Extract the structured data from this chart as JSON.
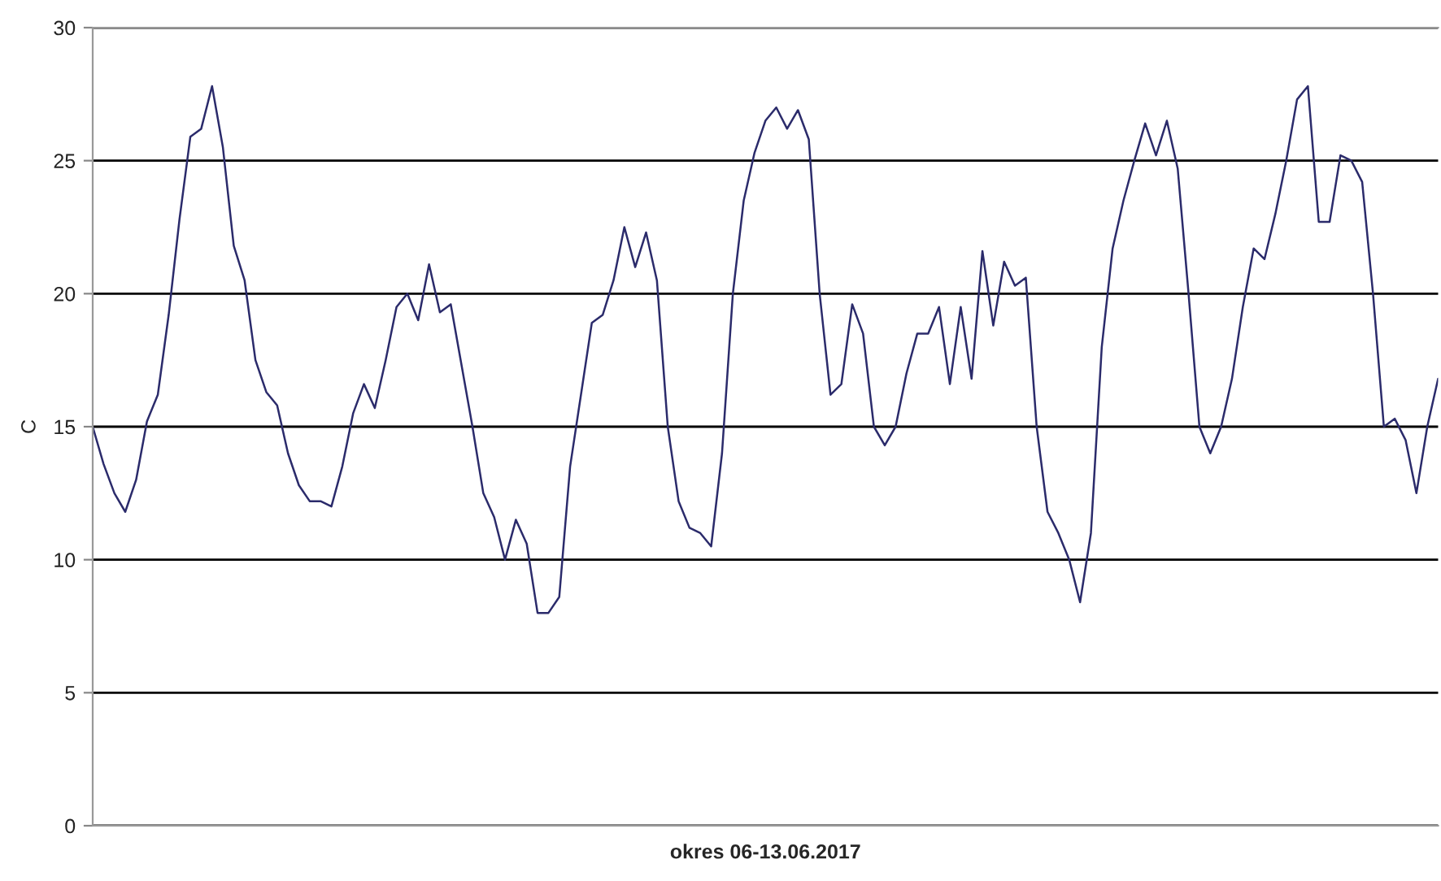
{
  "chart_data": {
    "type": "line",
    "xlabel": "okres 06-13.06.2017",
    "ylabel": "C",
    "categories": [
      null,
      null,
      null,
      null,
      null,
      null,
      null,
      null,
      null,
      null,
      null,
      null,
      null,
      null,
      null,
      null,
      null,
      null,
      null,
      null,
      null,
      null,
      null,
      null,
      null,
      null,
      null,
      null,
      null,
      null,
      null,
      null,
      null,
      null,
      null,
      null,
      null,
      null,
      null,
      null,
      null,
      null,
      null,
      null,
      null,
      null,
      null,
      null,
      null,
      null,
      null,
      null,
      null,
      null,
      null,
      null,
      null,
      null,
      null,
      null,
      null,
      null,
      null,
      null,
      null,
      null,
      null,
      null,
      null,
      null,
      null,
      null,
      null,
      null,
      null,
      null,
      null,
      null,
      null,
      null,
      null,
      null,
      null,
      null,
      null,
      null,
      null,
      null,
      null,
      null,
      null,
      null,
      null,
      null,
      null,
      null,
      null,
      null,
      null,
      null,
      null,
      null,
      null,
      null,
      null,
      null,
      null,
      null,
      null,
      null,
      null,
      null,
      null,
      null,
      null,
      null,
      null,
      null,
      null,
      null,
      null,
      null,
      null,
      null,
      null
    ],
    "series": [
      {
        "color": "#2b2b6b",
        "values": [
          15.0,
          13.6,
          12.5,
          11.8,
          13.0,
          15.2,
          16.2,
          19.2,
          22.8,
          25.9,
          26.2,
          27.8,
          25.5,
          21.8,
          20.5,
          17.5,
          16.3,
          15.8,
          14.0,
          12.8,
          12.2,
          12.2,
          12.0,
          13.5,
          15.5,
          16.6,
          15.7,
          17.5,
          19.5,
          20.0,
          19.0,
          21.1,
          19.3,
          19.6,
          17.3,
          15.0,
          12.5,
          11.6,
          10.0,
          11.5,
          10.6,
          8.0,
          8.0,
          8.6,
          13.5,
          16.2,
          18.9,
          19.2,
          20.5,
          22.5,
          21.0,
          22.3,
          20.5,
          15.0,
          12.2,
          11.2,
          11.0,
          10.5,
          14.0,
          20.0,
          23.5,
          25.3,
          26.5,
          27.0,
          26.2,
          26.9,
          25.8,
          20.0,
          16.2,
          16.6,
          19.6,
          18.5,
          15.0,
          14.3,
          15.0,
          17.0,
          18.5,
          18.5,
          19.5,
          16.6,
          19.5,
          16.8,
          21.6,
          18.8,
          21.2,
          20.3,
          20.6,
          15.0,
          11.8,
          11.0,
          10.0,
          8.4,
          11.0,
          18.0,
          21.7,
          23.5,
          25.0,
          26.4,
          25.2,
          26.5,
          24.7,
          20.0,
          15.0,
          14.0,
          15.0,
          16.8,
          19.5,
          21.7,
          21.3,
          23.0,
          25.0,
          27.3,
          27.8,
          22.7,
          22.7,
          25.2,
          25.0,
          24.2,
          20.0,
          15.0,
          15.3,
          14.5,
          12.5,
          15.0,
          16.8
        ]
      }
    ],
    "ylim": [
      0,
      30
    ],
    "yticks": [
      0,
      5,
      10,
      15,
      20,
      25,
      30
    ],
    "grid": "y",
    "tick_labels": "y",
    "marker": "none",
    "line_style": "solid",
    "legend": false
  }
}
